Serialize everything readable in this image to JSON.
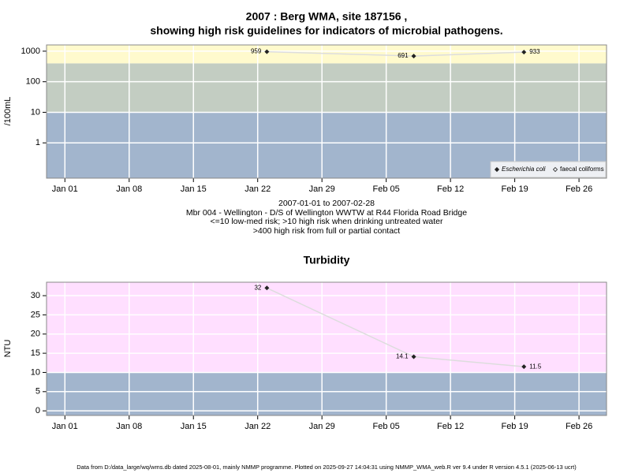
{
  "header": {
    "title": [
      "2007 : Berg WMA, site 187156 ,",
      "showing high risk guidelines for indicators of microbial pathogens."
    ]
  },
  "footer": "Data from D:/data_large/wq/wms.db dated 2025-08-01, mainly NMMP programme. Plotted on 2025-09-27 14:04:31 using NMMP_WMA_web.R ver 9.4 under R version 4.5.1 (2025-06-13 ucrt)",
  "chart_data": [
    {
      "type": "line",
      "annotations": [
        "2007-01-01 to 2007-02-28",
        "Mbr 004 - Wellington - D/S of Wellington WWTW at R44 Florida Road Bridge",
        "<=10 low-med risk; >10 high risk when drinking untreated water",
        ">400 high risk from full or partial contact"
      ],
      "y_label": "/100mL",
      "log_y": true,
      "x": [
        "2007-01-23",
        "2007-02-08",
        "2007-02-20"
      ],
      "series": [
        {
          "name": "Escherichia coli",
          "color": "#222222",
          "values": [
            959,
            691,
            933
          ]
        },
        {
          "name": "faecal coliforms",
          "color": "#222222",
          "values": [
            null,
            null,
            null
          ]
        }
      ],
      "xlim": [
        "2006-12-30",
        "2007-03-01"
      ],
      "xticks": [
        {
          "value": "2007-01-01",
          "label": "Jan 01"
        },
        {
          "value": "2007-01-08",
          "label": "Jan 08"
        },
        {
          "value": "2007-01-15",
          "label": "Jan 15"
        },
        {
          "value": "2007-01-22",
          "label": "Jan 22"
        },
        {
          "value": "2007-01-29",
          "label": "Jan 29"
        },
        {
          "value": "2007-02-05",
          "label": "Feb 05"
        },
        {
          "value": "2007-02-12",
          "label": "Feb 12"
        },
        {
          "value": "2007-02-19",
          "label": "Feb 19"
        },
        {
          "value": "2007-02-26",
          "label": "Feb 26"
        }
      ],
      "ylim": [
        0.07,
        1600
      ],
      "yticks": [
        1,
        10,
        100,
        1000
      ],
      "thresholds": [
        10,
        400
      ],
      "band_colors": [
        "#a2b5cd",
        "#c3cdc2",
        "#fffacd"
      ],
      "line_color": "#dddddd",
      "grid": true,
      "legend": "bottom-right"
    },
    {
      "type": "line",
      "title": "Turbidity",
      "y_label": "NTU",
      "log_y": false,
      "x": [
        "2007-01-23",
        "2007-02-08",
        "2007-02-20"
      ],
      "series": [
        {
          "name": "Turbidity",
          "color": "#222222",
          "values": [
            32,
            14.1,
            11.5
          ]
        }
      ],
      "xlim": [
        "2006-12-30",
        "2007-03-01"
      ],
      "xticks": [
        {
          "value": "2007-01-01",
          "label": "Jan 01"
        },
        {
          "value": "2007-01-08",
          "label": "Jan 08"
        },
        {
          "value": "2007-01-15",
          "label": "Jan 15"
        },
        {
          "value": "2007-01-22",
          "label": "Jan 22"
        },
        {
          "value": "2007-01-29",
          "label": "Jan 29"
        },
        {
          "value": "2007-02-05",
          "label": "Feb 05"
        },
        {
          "value": "2007-02-12",
          "label": "Feb 12"
        },
        {
          "value": "2007-02-19",
          "label": "Feb 19"
        },
        {
          "value": "2007-02-26",
          "label": "Feb 26"
        }
      ],
      "ylim": [
        -1.2,
        33.5
      ],
      "yticks": [
        0,
        5,
        10,
        15,
        20,
        25,
        30
      ],
      "thresholds": [
        10
      ],
      "band_colors": [
        "#a2b5cd",
        "#ffdfff"
      ],
      "line_color": "#dddddd",
      "grid": true
    }
  ]
}
